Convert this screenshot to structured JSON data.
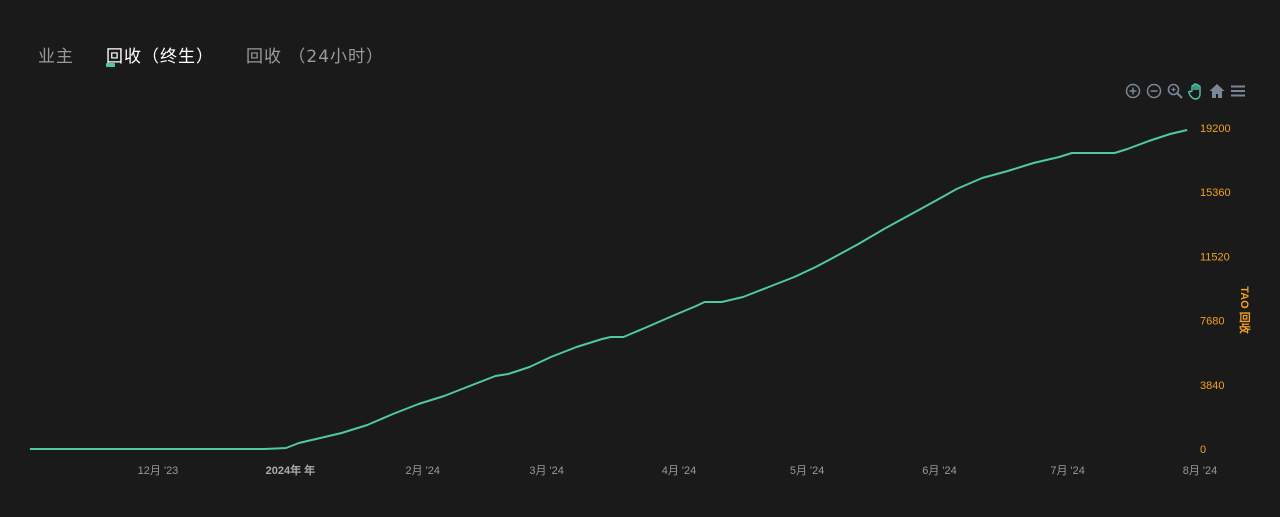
{
  "tabs": [
    {
      "label": "业主",
      "active": false
    },
    {
      "label": "回收（终生）",
      "active": true
    },
    {
      "label": "回收 （24小时）",
      "active": false
    }
  ],
  "toolbar": {
    "icons": [
      "zoom-in-icon",
      "zoom-out-icon",
      "magnifier-zoom-icon",
      "pan-hand-icon",
      "home-reset-icon",
      "menu-icon"
    ]
  },
  "colors": {
    "line": "#4fc8a8",
    "axis_label": "#f0a020",
    "background": "#1a1a1a",
    "active_tool": "#4fc8a8",
    "tool": "#7a8794"
  },
  "chart_data": {
    "type": "line",
    "ylabel": "TAO 回收",
    "y_axis_position": "right",
    "ylim": [
      0,
      19200
    ],
    "yticks": [
      "0",
      "3840",
      "7680",
      "11520",
      "15360",
      "19200"
    ],
    "xticks": [
      {
        "date": "2023-12-01",
        "label": "12月 '23",
        "bold": false
      },
      {
        "date": "2024-01-01",
        "label": "2024年 年",
        "bold": true
      },
      {
        "date": "2024-02-01",
        "label": "2月 '24",
        "bold": false
      },
      {
        "date": "2024-03-01",
        "label": "3月 '24",
        "bold": false
      },
      {
        "date": "2024-04-01",
        "label": "4月 '24",
        "bold": false
      },
      {
        "date": "2024-05-01",
        "label": "5月 '24",
        "bold": false
      },
      {
        "date": "2024-06-01",
        "label": "6月 '24",
        "bold": false
      },
      {
        "date": "2024-07-01",
        "label": "7月 '24",
        "bold": false
      },
      {
        "date": "2024-08-01",
        "label": "8月 '24",
        "bold": false
      }
    ],
    "grid": false,
    "series": [
      {
        "x": [
          "2023-11-01",
          "2023-12-26",
          "2023-12-31",
          "2024-01-03",
          "2024-01-07",
          "2024-01-13",
          "2024-01-19",
          "2024-01-25",
          "2024-01-31",
          "2024-02-06",
          "2024-02-12",
          "2024-02-18",
          "2024-02-21",
          "2024-02-26",
          "2024-03-02",
          "2024-03-08",
          "2024-03-14",
          "2024-03-16",
          "2024-03-19",
          "2024-03-24",
          "2024-03-31",
          "2024-04-05",
          "2024-04-07",
          "2024-04-11",
          "2024-04-16",
          "2024-04-22",
          "2024-04-28",
          "2024-05-03",
          "2024-05-07",
          "2024-05-13",
          "2024-05-19",
          "2024-05-25",
          "2024-05-31",
          "2024-06-05",
          "2024-06-11",
          "2024-06-17",
          "2024-06-23",
          "2024-06-29",
          "2024-07-02",
          "2024-07-12",
          "2024-07-15",
          "2024-07-20",
          "2024-07-25",
          "2024-07-29"
        ],
        "y": [
          0,
          0,
          60,
          359,
          598,
          957,
          1435,
          2093,
          2691,
          3170,
          3768,
          4366,
          4486,
          4904,
          5503,
          6101,
          6579,
          6699,
          6699,
          7237,
          8015,
          8553,
          8792,
          8792,
          9091,
          9689,
          10287,
          10885,
          11424,
          12261,
          13158,
          13996,
          14833,
          15551,
          16208,
          16627,
          17106,
          17465,
          17704,
          17704,
          17943,
          18421,
          18840,
          19080
        ]
      }
    ]
  }
}
